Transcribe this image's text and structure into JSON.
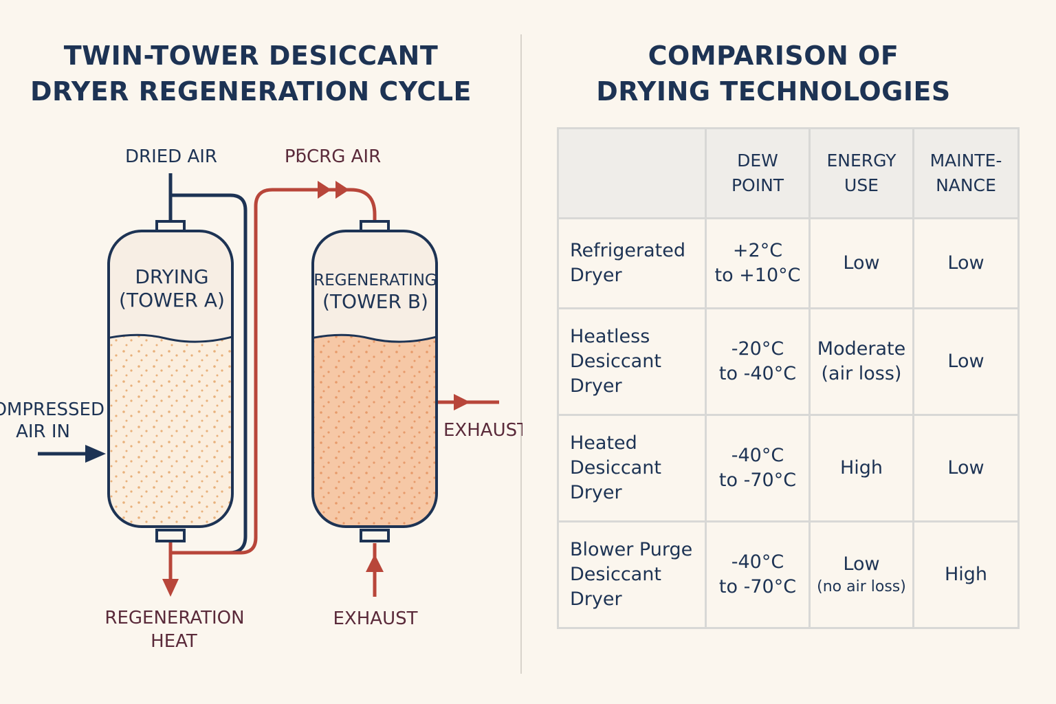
{
  "left_panel": {
    "title_line1": "TWIN-TOWER DESICCANT",
    "title_line2": "DRYER REGENERATION CYCLE",
    "labels": {
      "dried_air": "DRIED AIR",
      "purge_air": "PƃCRG AIR",
      "compressed_line1": "OMPRESSED",
      "compressed_line2": "AIR IN",
      "exhaust_side": "EXHAUST",
      "exhaust_bottom": "EXHAUST",
      "regen_line1": "REGENERATION",
      "regen_line2": "HEAT"
    },
    "tower_a": {
      "line1": "DRYING",
      "line2": "(TOWER A)"
    },
    "tower_b": {
      "line1": "REGENERATING",
      "line2": "(TOWER B)"
    }
  },
  "right_panel": {
    "title_line1": "COMPARISON OF",
    "title_line2": "DRYING TECHNOLOGIES",
    "table": {
      "headers": [
        {
          "line1": "",
          "line2": ""
        },
        {
          "line1": "DEW",
          "line2": "POINT"
        },
        {
          "line1": "ENERGY",
          "line2": "USE"
        },
        {
          "line1": "MAINTE-",
          "line2": "NANCE"
        }
      ],
      "rows": [
        {
          "name": [
            "Refrigerated",
            "Dryer",
            ""
          ],
          "dew": [
            "+2°C",
            "to +10°C"
          ],
          "energy": "Low",
          "energy_note": "",
          "maintenance": "Low"
        },
        {
          "name": [
            "Heatless",
            "Desiccant",
            "Dryer"
          ],
          "dew": [
            "-20°C",
            "to -40°C"
          ],
          "energy": "Moderate",
          "energy_note": "(air loss)",
          "maintenance": "Low"
        },
        {
          "name": [
            "Heated",
            "Desiccant",
            "Dryer"
          ],
          "dew": [
            "-40°C",
            "to -70°C"
          ],
          "energy": "High",
          "energy_note": "",
          "maintenance": "Low"
        },
        {
          "name": [
            "Blower Purge",
            "Desiccant",
            "Dryer"
          ],
          "dew": [
            "-40°C",
            "to -70°C"
          ],
          "energy": "Low",
          "energy_note": "(no air loss)",
          "maintenance": "High"
        }
      ]
    }
  },
  "colors": {
    "navy": "#1d3354",
    "red": "#b8463a",
    "maroon": "#5a2a3a",
    "background": "#fbf6ee",
    "desiccant_a": "#fbeede",
    "desiccant_b": "#f6c8a6"
  }
}
